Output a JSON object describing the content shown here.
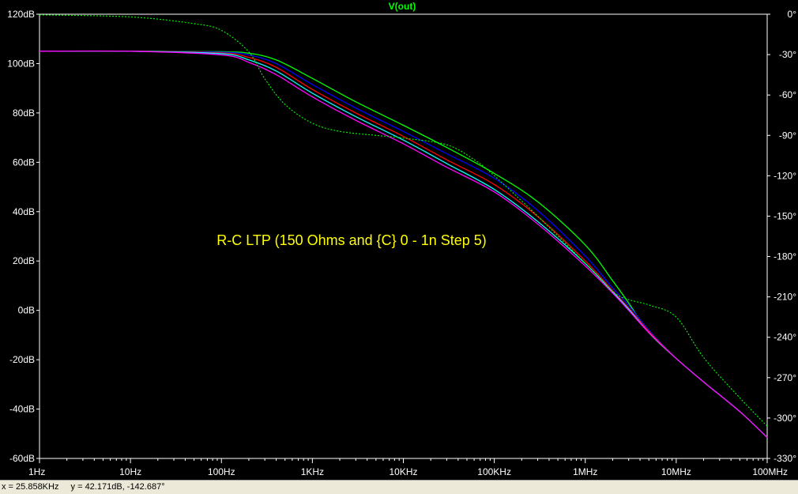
{
  "chart_data": {
    "type": "line",
    "title": "V(out)",
    "annotation": "R-C LTP (150 Ohms and {C} 0 - 1n Step 5)",
    "x_scale": "log",
    "x_range_hz": [
      1,
      100000000
    ],
    "x_ticks": [
      {
        "value": 1,
        "label": "1Hz"
      },
      {
        "value": 10,
        "label": "10Hz"
      },
      {
        "value": 100,
        "label": "100Hz"
      },
      {
        "value": 1000,
        "label": "1KHz"
      },
      {
        "value": 10000,
        "label": "10KHz"
      },
      {
        "value": 100000,
        "label": "100KHz"
      },
      {
        "value": 1000000,
        "label": "1MHz"
      },
      {
        "value": 10000000,
        "label": "10MHz"
      },
      {
        "value": 100000000,
        "label": "100MHz"
      }
    ],
    "ylim": [
      -60,
      120
    ],
    "y_ticks": [
      {
        "value": 120,
        "label": "120dB"
      },
      {
        "value": 100,
        "label": "100dB"
      },
      {
        "value": 80,
        "label": "80dB"
      },
      {
        "value": 60,
        "label": "60dB"
      },
      {
        "value": 40,
        "label": "40dB"
      },
      {
        "value": 20,
        "label": "20dB"
      },
      {
        "value": 0,
        "label": "0dB"
      },
      {
        "value": -20,
        "label": "-20dB"
      },
      {
        "value": -40,
        "label": "-40dB"
      },
      {
        "value": -60,
        "label": "-60dB"
      }
    ],
    "y2lim": [
      -330,
      0
    ],
    "y2_ticks": [
      {
        "value": 0,
        "label": "0°"
      },
      {
        "value": -30,
        "label": "-30°"
      },
      {
        "value": -60,
        "label": "-60°"
      },
      {
        "value": -90,
        "label": "-90°"
      },
      {
        "value": -120,
        "label": "-120°"
      },
      {
        "value": -150,
        "label": "-150°"
      },
      {
        "value": -180,
        "label": "-180°"
      },
      {
        "value": -210,
        "label": "-210°"
      },
      {
        "value": -240,
        "label": "-240°"
      },
      {
        "value": -270,
        "label": "-270°"
      },
      {
        "value": -300,
        "label": "-300°"
      },
      {
        "value": -330,
        "label": "-330°"
      }
    ],
    "grid": false,
    "series": [
      {
        "color": "#00ff00",
        "axis": "dB",
        "style": "solid",
        "points": [
          [
            1,
            105
          ],
          [
            10,
            105
          ],
          [
            100,
            104.8
          ],
          [
            200,
            104.2
          ],
          [
            400,
            101.5
          ],
          [
            1000,
            94
          ],
          [
            3000,
            84.5
          ],
          [
            10000,
            75
          ],
          [
            30000,
            66
          ],
          [
            100000,
            55.5
          ],
          [
            300000,
            44
          ],
          [
            1000000,
            26.5
          ],
          [
            2000000,
            12
          ],
          [
            3000000,
            3
          ],
          [
            5000000,
            -9
          ],
          [
            10000000,
            -19.5
          ],
          [
            20000000,
            -29
          ],
          [
            50000000,
            -41
          ],
          [
            100000000,
            -51.5
          ]
        ]
      },
      {
        "color": "#0000ff",
        "axis": "dB",
        "style": "solid",
        "points": [
          [
            1,
            105
          ],
          [
            10,
            105
          ],
          [
            100,
            104.6
          ],
          [
            200,
            103.5
          ],
          [
            400,
            100
          ],
          [
            1000,
            91.5
          ],
          [
            3000,
            82
          ],
          [
            10000,
            72.5
          ],
          [
            30000,
            63.5
          ],
          [
            100000,
            53.5
          ],
          [
            300000,
            40.5
          ],
          [
            1000000,
            22
          ],
          [
            2000000,
            9
          ],
          [
            3000000,
            2
          ],
          [
            5000000,
            -8
          ],
          [
            10000000,
            -19.5
          ],
          [
            20000000,
            -29
          ],
          [
            50000000,
            -41
          ],
          [
            100000000,
            -51.5
          ]
        ]
      },
      {
        "color": "#ff0000",
        "axis": "dB",
        "style": "solid",
        "points": [
          [
            1,
            105
          ],
          [
            10,
            105
          ],
          [
            100,
            104.3
          ],
          [
            200,
            102.5
          ],
          [
            400,
            98.5
          ],
          [
            1000,
            89.5
          ],
          [
            3000,
            80
          ],
          [
            10000,
            70.5
          ],
          [
            30000,
            61
          ],
          [
            100000,
            51
          ],
          [
            300000,
            38
          ],
          [
            1000000,
            20
          ],
          [
            2000000,
            8
          ],
          [
            3000000,
            1
          ],
          [
            5000000,
            -8.5
          ],
          [
            10000000,
            -19.5
          ],
          [
            20000000,
            -29
          ],
          [
            50000000,
            -41
          ],
          [
            100000000,
            -51.5
          ]
        ]
      },
      {
        "color": "#00ffff",
        "axis": "dB",
        "style": "solid",
        "points": [
          [
            1,
            105
          ],
          [
            10,
            105
          ],
          [
            100,
            104
          ],
          [
            200,
            101.5
          ],
          [
            400,
            97
          ],
          [
            1000,
            88
          ],
          [
            3000,
            78.5
          ],
          [
            10000,
            69
          ],
          [
            30000,
            59.5
          ],
          [
            100000,
            49
          ],
          [
            300000,
            36
          ],
          [
            1000000,
            19
          ],
          [
            2000000,
            7.5
          ],
          [
            3000000,
            0.5
          ],
          [
            5000000,
            -9
          ],
          [
            10000000,
            -19.5
          ],
          [
            20000000,
            -29
          ],
          [
            50000000,
            -41
          ],
          [
            100000000,
            -51.5
          ]
        ]
      },
      {
        "color": "#ff00ff",
        "axis": "dB",
        "style": "solid",
        "points": [
          [
            1,
            105
          ],
          [
            10,
            105
          ],
          [
            100,
            103.5
          ],
          [
            200,
            100.5
          ],
          [
            400,
            95.5
          ],
          [
            1000,
            86.5
          ],
          [
            3000,
            77
          ],
          [
            10000,
            67.5
          ],
          [
            30000,
            58
          ],
          [
            100000,
            48
          ],
          [
            300000,
            35
          ],
          [
            1000000,
            18
          ],
          [
            2000000,
            7
          ],
          [
            3000000,
            0
          ],
          [
            5000000,
            -9
          ],
          [
            10000000,
            -19.5
          ],
          [
            20000000,
            -29
          ],
          [
            50000000,
            -41
          ],
          [
            100000000,
            -51.5
          ]
        ]
      },
      {
        "color": "#00ff00",
        "axis": "phase",
        "style": "dotted",
        "points": [
          [
            1,
            -0.5
          ],
          [
            10,
            -2
          ],
          [
            50,
            -7
          ],
          [
            100,
            -12
          ],
          [
            200,
            -28
          ],
          [
            300,
            -48
          ],
          [
            500,
            -67
          ],
          [
            1000,
            -81
          ],
          [
            2000,
            -87
          ],
          [
            5000,
            -90
          ],
          [
            10000,
            -92
          ],
          [
            30000,
            -97
          ],
          [
            60000,
            -108
          ],
          [
            100000,
            -120
          ],
          [
            300000,
            -150
          ],
          [
            1000000,
            -185
          ],
          [
            2000000,
            -206
          ],
          [
            3000000,
            -212
          ],
          [
            5000000,
            -216
          ],
          [
            10000000,
            -225
          ],
          [
            20000000,
            -255
          ],
          [
            50000000,
            -285
          ],
          [
            100000000,
            -306
          ]
        ]
      }
    ]
  },
  "status": {
    "x_readout": "x = 25.858KHz",
    "y_readout": "y = 42.171dB, -142.687°"
  },
  "colors": {
    "background": "#000000",
    "axis": "#ffffff",
    "title": "#00ff00",
    "annotation": "#ffff00"
  }
}
